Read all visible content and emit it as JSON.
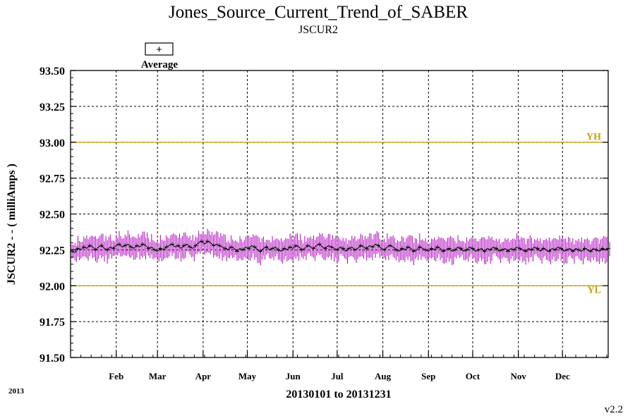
{
  "chart_data": {
    "type": "line",
    "title": "Jones_Source_Current_Trend_of_SABER",
    "subtitle": "JSCUR2",
    "ylabel": "JSCUR2 - - ( milliAmps )",
    "xlabel": "20130101 to 20131231",
    "year_label": "2013",
    "version_label": "v2.2",
    "legend": {
      "entries": [
        "Average"
      ],
      "symbol": "+",
      "placement": "top-left"
    },
    "ylim": [
      91.5,
      93.5
    ],
    "y_ticks": [
      "91.50",
      "91.75",
      "92.00",
      "92.25",
      "92.50",
      "92.75",
      "93.00",
      "93.25",
      "93.50"
    ],
    "x_range_days": [
      0,
      365
    ],
    "month_ticks": [
      {
        "label": "Feb",
        "day": 31
      },
      {
        "label": "Mar",
        "day": 59
      },
      {
        "label": "Apr",
        "day": 90
      },
      {
        "label": "May",
        "day": 120
      },
      {
        "label": "Jun",
        "day": 151
      },
      {
        "label": "Jul",
        "day": 181
      },
      {
        "label": "Aug",
        "day": 212
      },
      {
        "label": "Sep",
        "day": 243
      },
      {
        "label": "Oct",
        "day": 273
      },
      {
        "label": "Nov",
        "day": 304
      },
      {
        "label": "Dec",
        "day": 334
      }
    ],
    "limits": [
      {
        "label": "YH",
        "value": 93.0
      },
      {
        "label": "YL",
        "value": 92.0
      }
    ],
    "grid": true,
    "colors": {
      "average": "#000000",
      "range": "#b000c0",
      "limit": "#c8a000",
      "grid": "#000000"
    },
    "series": [
      {
        "name": "Average",
        "start_day": 1,
        "step_days": 2,
        "values": [
          92.24,
          92.23,
          92.26,
          92.25,
          92.27,
          92.26,
          92.28,
          92.27,
          92.25,
          92.27,
          92.28,
          92.26,
          92.25,
          92.27,
          92.26,
          92.28,
          92.29,
          92.27,
          92.28,
          92.29,
          92.27,
          92.26,
          92.28,
          92.27,
          92.29,
          92.28,
          92.26,
          92.27,
          92.25,
          92.24,
          92.26,
          92.25,
          92.27,
          92.28,
          92.29,
          92.27,
          92.28,
          92.26,
          92.28,
          92.29,
          92.27,
          92.26,
          92.28,
          92.3,
          92.31,
          92.29,
          92.31,
          92.3,
          92.28,
          92.29,
          92.28,
          92.27,
          92.26,
          92.25,
          92.27,
          92.26,
          92.24,
          92.26,
          92.25,
          92.27,
          92.26,
          92.28,
          92.27,
          92.25,
          92.24,
          92.26,
          92.27,
          92.25,
          92.26,
          92.27,
          92.25,
          92.24,
          92.26,
          92.25,
          92.27,
          92.26,
          92.28,
          92.27,
          92.25,
          92.26,
          92.28,
          92.27,
          92.26,
          92.28,
          92.29,
          92.27,
          92.26,
          92.28,
          92.27,
          92.26,
          92.25,
          92.27,
          92.26,
          92.24,
          92.26,
          92.27,
          92.25,
          92.26,
          92.28,
          92.27,
          92.26,
          92.28,
          92.27,
          92.29,
          92.28,
          92.26,
          92.25,
          92.27,
          92.28,
          92.27,
          92.25,
          92.24,
          92.26,
          92.25,
          92.27,
          92.26,
          92.24,
          92.25,
          92.27,
          92.26,
          92.25,
          92.24,
          92.26,
          92.25,
          92.27,
          92.26,
          92.24,
          92.25,
          92.26,
          92.24,
          92.25,
          92.27,
          92.26,
          92.24,
          92.25,
          92.27,
          92.26,
          92.24,
          92.25,
          92.26,
          92.24,
          92.26,
          92.25,
          92.27,
          92.26,
          92.24,
          92.25,
          92.26,
          92.24,
          92.26,
          92.25,
          92.27,
          92.26,
          92.25,
          92.24,
          92.26,
          92.25,
          92.27,
          92.26,
          92.24,
          92.26,
          92.25,
          92.24,
          92.26,
          92.25,
          92.27,
          92.26,
          92.24,
          92.25,
          92.26,
          92.24,
          92.26,
          92.25,
          92.24,
          92.26,
          92.25,
          92.24,
          92.26,
          92.25,
          92.24,
          92.26,
          92.25,
          92.26,
          92.27
        ]
      }
    ],
    "range_half_width": 0.075
  }
}
